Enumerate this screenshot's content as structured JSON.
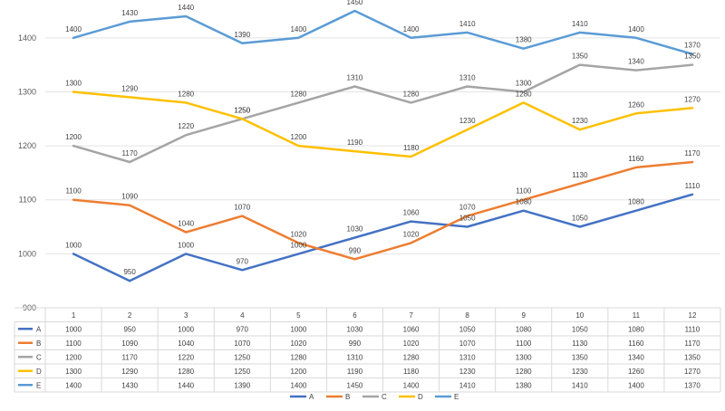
{
  "chart_data": {
    "type": "line",
    "title": "",
    "xlabel": "",
    "ylabel": "",
    "categories": [
      "1",
      "2",
      "3",
      "4",
      "5",
      "6",
      "7",
      "8",
      "9",
      "10",
      "11",
      "12"
    ],
    "ylim": [
      900,
      1450
    ],
    "yticks": [
      900,
      1000,
      1100,
      1200,
      1300,
      1400
    ],
    "grid": true,
    "legend_position": "bottom",
    "data_table": true,
    "series": [
      {
        "name": "A",
        "color": "#4472C4",
        "values": [
          1000,
          950,
          1000,
          970,
          1000,
          1030,
          1060,
          1050,
          1080,
          1050,
          1080,
          1110
        ]
      },
      {
        "name": "B",
        "color": "#ED7D31",
        "values": [
          1100,
          1090,
          1040,
          1070,
          1020,
          990,
          1020,
          1070,
          1100,
          1130,
          1160,
          1170
        ]
      },
      {
        "name": "C",
        "color": "#A5A5A5",
        "values": [
          1200,
          1170,
          1220,
          1250,
          1280,
          1310,
          1280,
          1310,
          1300,
          1350,
          1340,
          1350
        ]
      },
      {
        "name": "D",
        "color": "#FFC000",
        "values": [
          1300,
          1290,
          1280,
          1250,
          1200,
          1190,
          1180,
          1230,
          1280,
          1230,
          1260,
          1270
        ]
      },
      {
        "name": "E",
        "color": "#5B9BD5",
        "values": [
          1400,
          1430,
          1440,
          1390,
          1400,
          1450,
          1400,
          1410,
          1380,
          1410,
          1400,
          1370
        ]
      }
    ]
  }
}
